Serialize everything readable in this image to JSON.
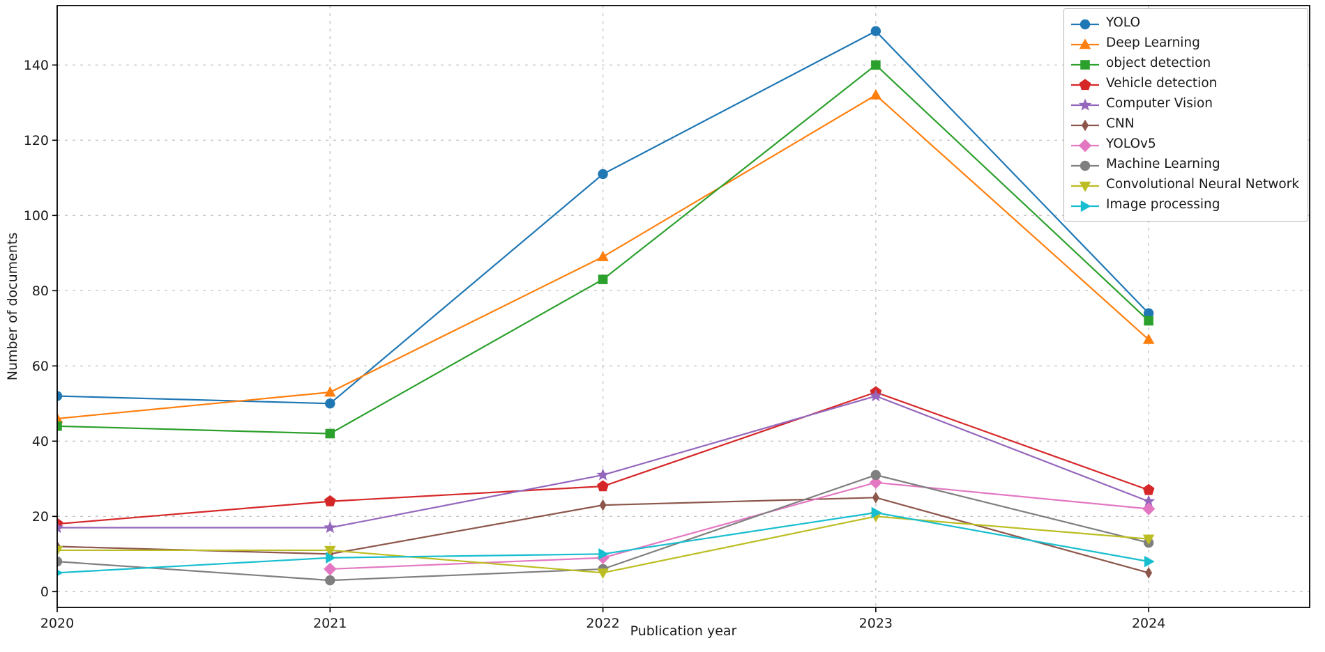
{
  "chart_data": {
    "type": "line",
    "title": "",
    "xlabel": "Publication year",
    "ylabel": "Number of documents",
    "x": [
      2020,
      2021,
      2022,
      2023,
      2024
    ],
    "xlim": [
      2020,
      2024.59
    ],
    "ylim": [
      -4.2,
      155.8
    ],
    "yticks": [
      0,
      20,
      40,
      60,
      80,
      100,
      120,
      140
    ],
    "grid": "dashed",
    "grid_color": "#c6c6c6",
    "legend_position": "upper-right",
    "series": [
      {
        "name": "YOLO",
        "color": "#1f77b4",
        "marker": "circle",
        "values": [
          52,
          50,
          111,
          149,
          74
        ]
      },
      {
        "name": "Deep Learning",
        "color": "#ff7f0e",
        "marker": "triangle-up",
        "values": [
          46,
          53,
          89,
          132,
          67
        ]
      },
      {
        "name": "object detection",
        "color": "#2ca02c",
        "marker": "square",
        "values": [
          44,
          42,
          83,
          140,
          72
        ]
      },
      {
        "name": "Vehicle detection",
        "color": "#d62728",
        "marker": "pentagon",
        "values": [
          18,
          24,
          28,
          53,
          27
        ]
      },
      {
        "name": "Computer Vision",
        "color": "#9467bd",
        "marker": "star",
        "values": [
          17,
          17,
          31,
          52,
          24
        ]
      },
      {
        "name": "CNN",
        "color": "#8c564b",
        "marker": "thin-diamond",
        "values": [
          12,
          10,
          23,
          25,
          5
        ]
      },
      {
        "name": "YOLOv5",
        "color": "#e377c2",
        "marker": "diamond",
        "values": [
          null,
          6,
          9,
          29,
          22
        ]
      },
      {
        "name": "Machine Learning",
        "color": "#7f7f7f",
        "marker": "circle",
        "values": [
          8,
          3,
          6,
          31,
          13
        ]
      },
      {
        "name": "Convolutional Neural Network",
        "color": "#bcbd22",
        "marker": "triangle-down",
        "values": [
          11,
          11,
          5,
          20,
          14
        ]
      },
      {
        "name": "Image processing",
        "color": "#17becf",
        "marker": "triangle-right",
        "values": [
          5,
          9,
          10,
          21,
          8
        ]
      }
    ]
  }
}
